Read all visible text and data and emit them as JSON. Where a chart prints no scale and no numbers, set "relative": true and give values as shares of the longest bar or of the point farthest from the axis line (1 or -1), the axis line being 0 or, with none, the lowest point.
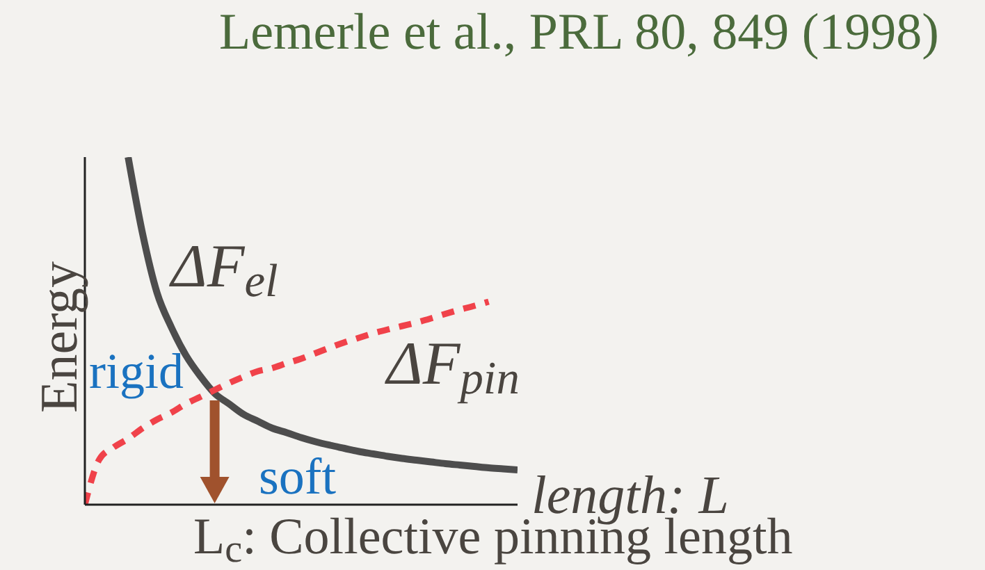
{
  "chart_data": {
    "type": "line",
    "title": "Lemerle et al., PRL 80, 849 (1998)",
    "xlabel": "length: L",
    "ylabel": "Energy",
    "relative": true,
    "categories": [
      null,
      null,
      null,
      null,
      null,
      null,
      null,
      null,
      null,
      null,
      null,
      null,
      null,
      null,
      null,
      null,
      null,
      null,
      null,
      null,
      null,
      null,
      null,
      null,
      null,
      null,
      null,
      null,
      null,
      null,
      null
    ],
    "series": [
      {
        "name": "ΔF$_{el}$",
        "color": "#4d4d4d",
        "line_style": "solid",
        "values": [
          null,
          null,
          null,
          1.0,
          0.78,
          0.61,
          0.51,
          0.43,
          0.37,
          0.32,
          0.29,
          0.26,
          0.24,
          0.22,
          0.207,
          0.193,
          0.181,
          0.171,
          0.162,
          0.153,
          0.146,
          0.139,
          0.133,
          0.128,
          0.123,
          0.118,
          0.114,
          0.11,
          0.106,
          0.103,
          0.1
        ]
      },
      {
        "name": "ΔF$_{pin}$",
        "color": "#f0424a",
        "line_style": "dashed",
        "values": [
          0.0,
          0.13,
          0.165,
          0.19,
          0.22,
          0.245,
          0.265,
          0.29,
          0.31,
          0.33,
          0.35,
          0.368,
          0.384,
          0.393,
          0.407,
          0.42,
          0.436,
          0.452,
          0.467,
          0.48,
          0.493,
          0.504,
          0.514,
          0.524,
          0.536,
          0.549,
          0.561,
          0.572,
          0.584,
          null,
          null
        ]
      }
    ],
    "annotations": [
      "rigid",
      "soft",
      "L$_{c}$: Collective pinning length"
    ]
  }
}
